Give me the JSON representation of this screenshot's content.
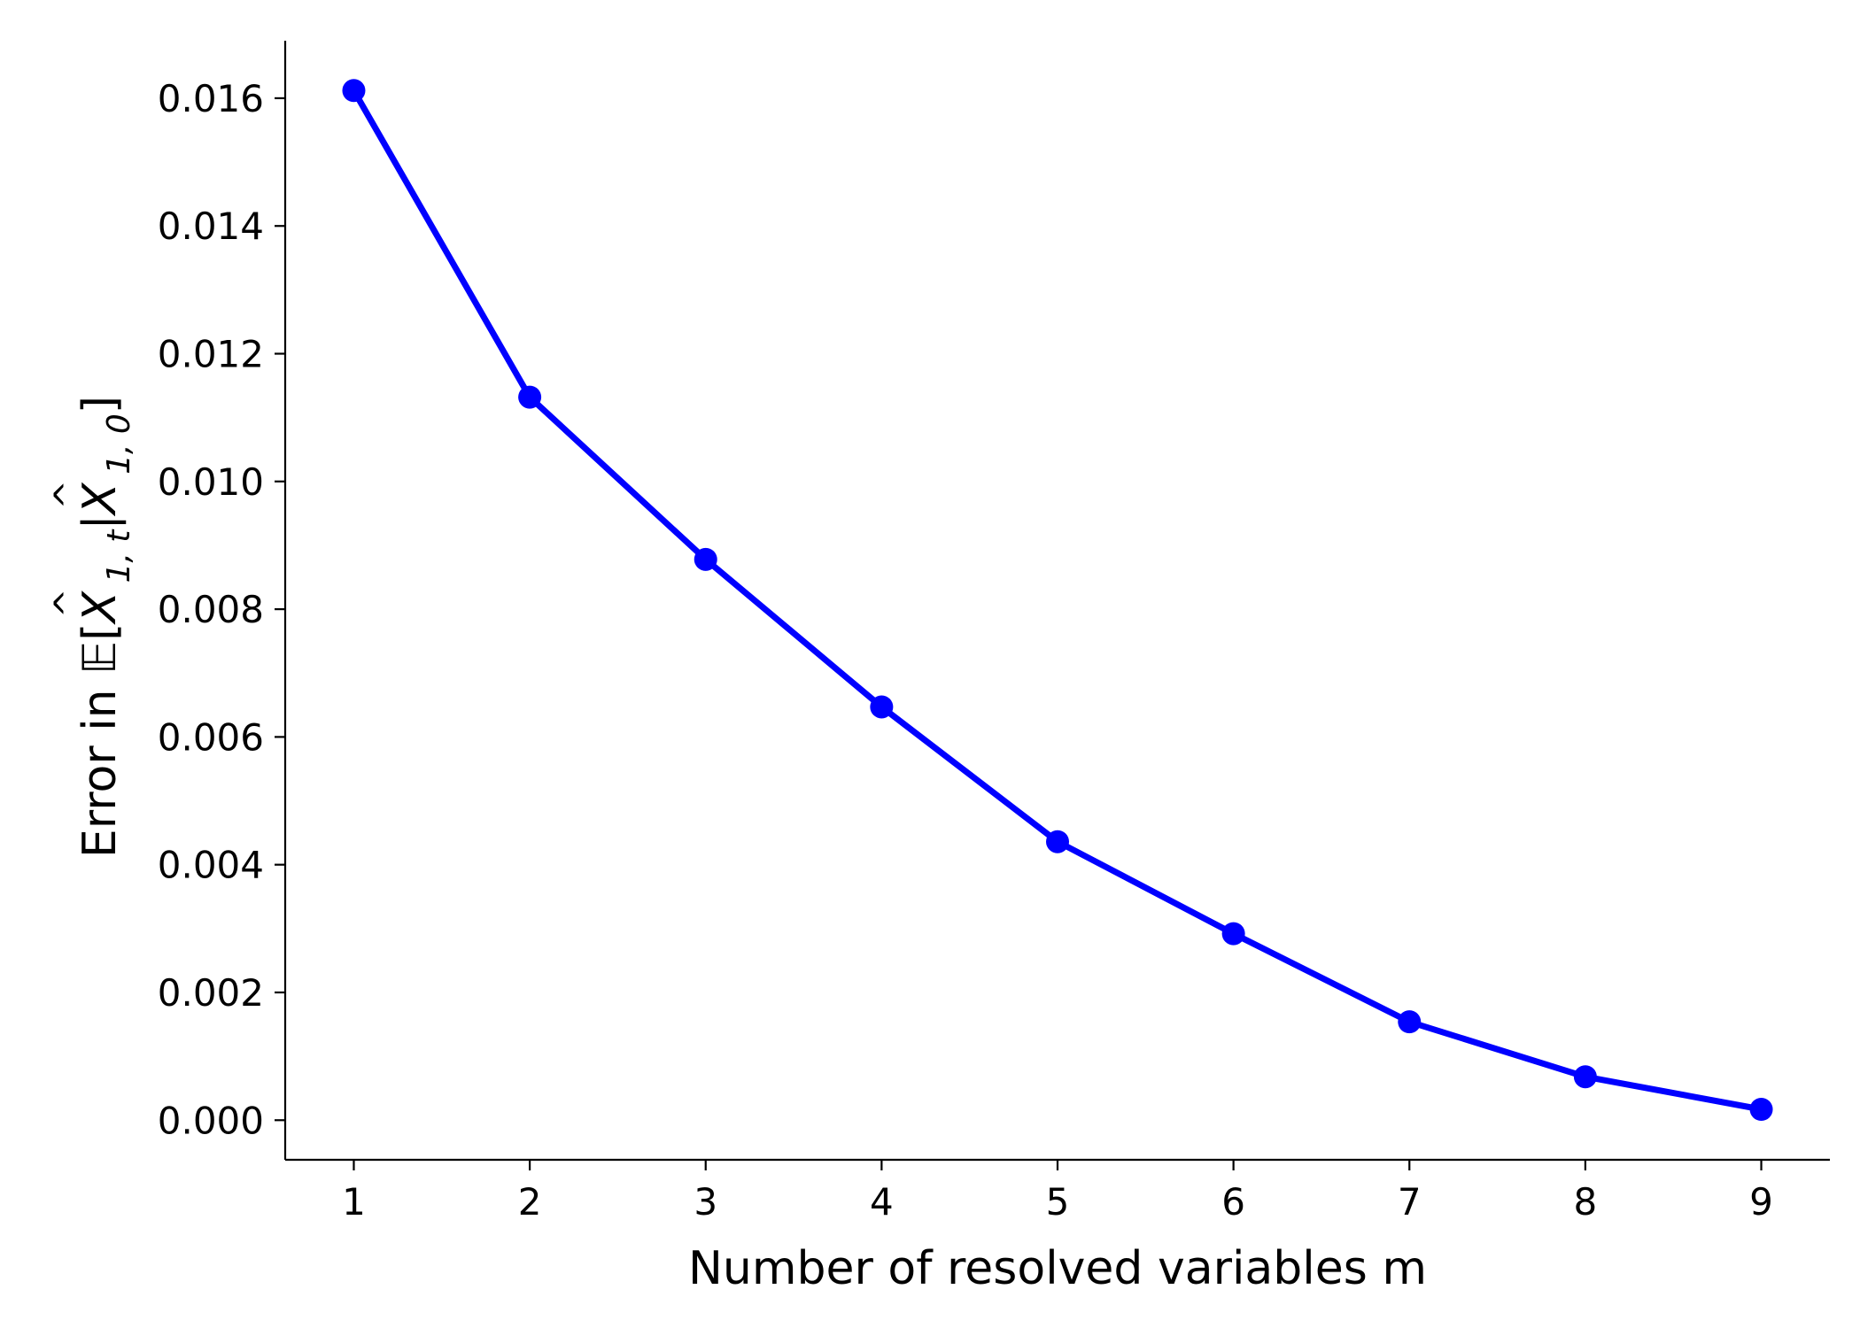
{
  "chart_data": {
    "type": "line",
    "title": "",
    "xlabel": "Number of resolved variables m",
    "ylabel": {
      "prefix": "Error in ",
      "expectation_symbol": "𝔼",
      "open_bracket": "[",
      "var1": "X",
      "var1_subscript": "1, t",
      "given_bar": "|",
      "var2": "X",
      "var2_subscript": "1, 0",
      "close_bracket": "]",
      "hat": "^"
    },
    "x": [
      1,
      2,
      3,
      4,
      5,
      6,
      7,
      8,
      9
    ],
    "series": [
      {
        "name": "error",
        "color": "#0000ff",
        "values": [
          0.01612,
          0.01132,
          0.00878,
          0.00647,
          0.00436,
          0.00292,
          0.00154,
          0.00068,
          0.00017
        ]
      }
    ],
    "xlim": [
      0.61,
      9.39
    ],
    "ylim": [
      -0.00062,
      0.0169
    ],
    "x_ticks": [
      1,
      2,
      3,
      4,
      5,
      6,
      7,
      8,
      9
    ],
    "x_tick_labels": [
      "1",
      "2",
      "3",
      "4",
      "5",
      "6",
      "7",
      "8",
      "9"
    ],
    "y_ticks": [
      0.0,
      0.002,
      0.004,
      0.006,
      0.008,
      0.01,
      0.012,
      0.014,
      0.016
    ],
    "y_tick_labels": [
      "0.000",
      "0.002",
      "0.004",
      "0.006",
      "0.008",
      "0.010",
      "0.012",
      "0.014",
      "0.016"
    ],
    "grid": false,
    "legend": "none"
  }
}
